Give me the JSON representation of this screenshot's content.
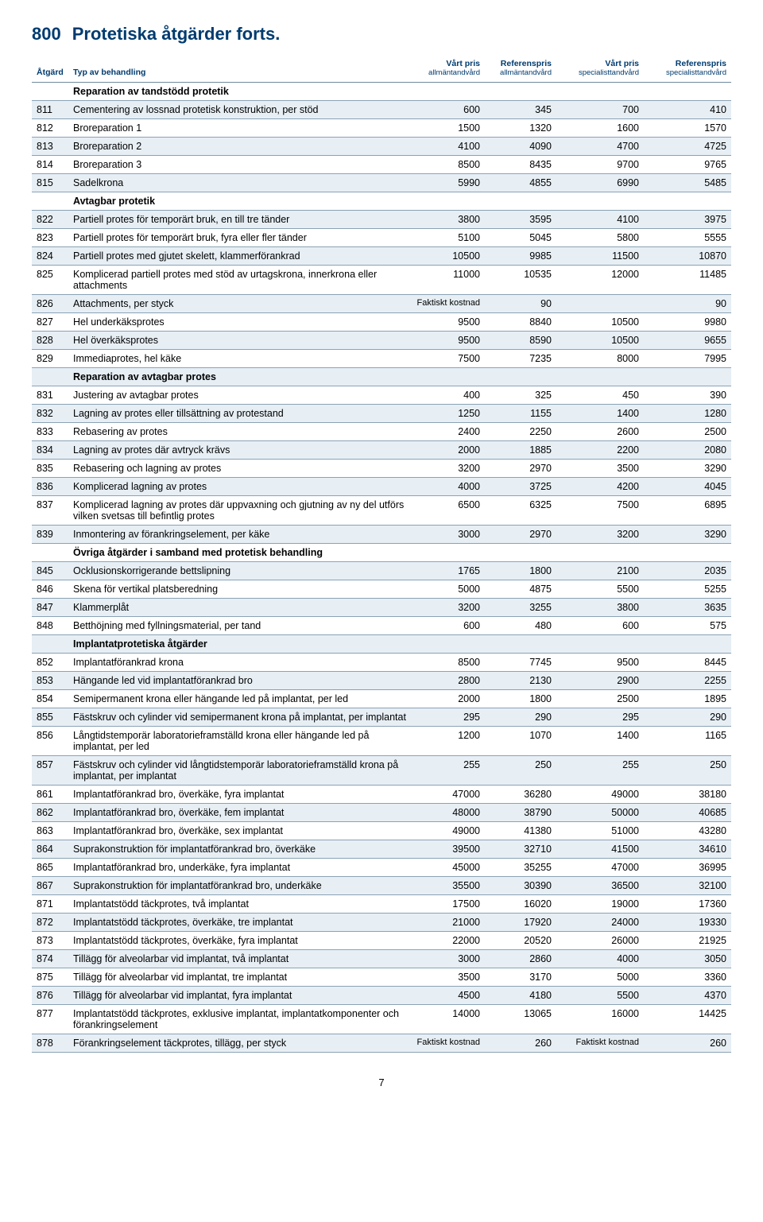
{
  "title_code": "800",
  "title_text": "Protetiska åtgärder forts.",
  "columns": {
    "atgard": "Åtgärd",
    "typ": "Typ av behandling",
    "c1_top": "Vårt pris",
    "c1_sub": "allmäntandvård",
    "c2_top": "Referenspris",
    "c2_sub": "allmäntandvård",
    "c3_top": "Vårt pris",
    "c3_sub": "specialisttandvård",
    "c4_top": "Referenspris",
    "c4_sub": "specialisttandvård"
  },
  "faktiskt_kostnad": "Faktiskt kostnad",
  "page_number": "7",
  "rows": [
    {
      "type": "section",
      "desc": "Reparation av tandstödd protetik"
    },
    {
      "code": "811",
      "desc": "Cementering av lossnad protetisk konstruktion, per stöd",
      "v": [
        "600",
        "345",
        "700",
        "410"
      ]
    },
    {
      "code": "812",
      "desc": "Broreparation 1",
      "v": [
        "1500",
        "1320",
        "1600",
        "1570"
      ]
    },
    {
      "code": "813",
      "desc": "Broreparation 2",
      "v": [
        "4100",
        "4090",
        "4700",
        "4725"
      ]
    },
    {
      "code": "814",
      "desc": "Broreparation 3",
      "v": [
        "8500",
        "8435",
        "9700",
        "9765"
      ]
    },
    {
      "code": "815",
      "desc": "Sadelkrona",
      "v": [
        "5990",
        "4855",
        "6990",
        "5485"
      ]
    },
    {
      "type": "section",
      "desc": "Avtagbar protetik"
    },
    {
      "code": "822",
      "desc": "Partiell protes för temporärt bruk, en till tre tänder",
      "v": [
        "3800",
        "3595",
        "4100",
        "3975"
      ]
    },
    {
      "code": "823",
      "desc": "Partiell protes för temporärt bruk, fyra eller fler tänder",
      "v": [
        "5100",
        "5045",
        "5800",
        "5555"
      ]
    },
    {
      "code": "824",
      "desc": "Partiell protes med gjutet skelett, klammerförankrad",
      "v": [
        "10500",
        "9985",
        "11500",
        "10870"
      ]
    },
    {
      "code": "825",
      "desc": "Komplicerad partiell protes med stöd av urtagskrona, innerkrona eller attachments",
      "v": [
        "11000",
        "10535",
        "12000",
        "11485"
      ]
    },
    {
      "code": "826",
      "desc": "Attachments, per styck",
      "v": [
        "__FK__",
        "90",
        "",
        "90"
      ]
    },
    {
      "code": "827",
      "desc": "Hel underkäksprotes",
      "v": [
        "9500",
        "8840",
        "10500",
        "9980"
      ]
    },
    {
      "code": "828",
      "desc": "Hel överkäksprotes",
      "v": [
        "9500",
        "8590",
        "10500",
        "9655"
      ]
    },
    {
      "code": "829",
      "desc": "Immediaprotes, hel käke",
      "v": [
        "7500",
        "7235",
        "8000",
        "7995"
      ]
    },
    {
      "type": "section",
      "desc": "Reparation av avtagbar protes"
    },
    {
      "code": "831",
      "desc": "Justering av avtagbar protes",
      "v": [
        "400",
        "325",
        "450",
        "390"
      ]
    },
    {
      "code": "832",
      "desc": "Lagning av protes eller tillsättning av protestand",
      "v": [
        "1250",
        "1155",
        "1400",
        "1280"
      ]
    },
    {
      "code": "833",
      "desc": "Rebasering av protes",
      "v": [
        "2400",
        "2250",
        "2600",
        "2500"
      ]
    },
    {
      "code": "834",
      "desc": "Lagning av protes där avtryck krävs",
      "v": [
        "2000",
        "1885",
        "2200",
        "2080"
      ]
    },
    {
      "code": "835",
      "desc": "Rebasering och lagning av protes",
      "v": [
        "3200",
        "2970",
        "3500",
        "3290"
      ]
    },
    {
      "code": "836",
      "desc": "Komplicerad lagning av protes",
      "v": [
        "4000",
        "3725",
        "4200",
        "4045"
      ]
    },
    {
      "code": "837",
      "desc": "Komplicerad lagning av protes där uppvaxning och gjutning av ny del utförs vilken svetsas till befintlig protes",
      "v": [
        "6500",
        "6325",
        "7500",
        "6895"
      ]
    },
    {
      "code": "839",
      "desc": "Inmontering av förankringselement, per käke",
      "v": [
        "3000",
        "2970",
        "3200",
        "3290"
      ]
    },
    {
      "type": "section",
      "desc": "Övriga åtgärder i samband med protetisk behandling"
    },
    {
      "code": "845",
      "desc": "Ocklusionskorrigerande bettslipning",
      "v": [
        "1765",
        "1800",
        "2100",
        "2035"
      ]
    },
    {
      "code": "846",
      "desc": "Skena för vertikal platsberedning",
      "v": [
        "5000",
        "4875",
        "5500",
        "5255"
      ]
    },
    {
      "code": "847",
      "desc": "Klammerplåt",
      "v": [
        "3200",
        "3255",
        "3800",
        "3635"
      ]
    },
    {
      "code": "848",
      "desc": "Betthöjning med fyllningsmaterial, per tand",
      "v": [
        "600",
        "480",
        "600",
        "575"
      ]
    },
    {
      "type": "section",
      "desc": "Implantatprotetiska åtgärder"
    },
    {
      "code": "852",
      "desc": "Implantatförankrad krona",
      "v": [
        "8500",
        "7745",
        "9500",
        "8445"
      ]
    },
    {
      "code": "853",
      "desc": "Hängande led vid implantatförankrad bro",
      "v": [
        "2800",
        "2130",
        "2900",
        "2255"
      ]
    },
    {
      "code": "854",
      "desc": "Semipermanent krona eller hängande led på implantat, per led",
      "v": [
        "2000",
        "1800",
        "2500",
        "1895"
      ]
    },
    {
      "code": "855",
      "desc": "Fästskruv och cylinder vid semipermanent krona på implantat, per implantat",
      "v": [
        "295",
        "290",
        "295",
        "290"
      ]
    },
    {
      "code": "856",
      "desc": "Långtidstemporär laboratorieframställd krona eller hängande led på implantat, per led",
      "v": [
        "1200",
        "1070",
        "1400",
        "1165"
      ]
    },
    {
      "code": "857",
      "desc": "Fästskruv och cylinder vid långtidstemporär laboratorieframställd krona på implantat, per implantat",
      "v": [
        "255",
        "250",
        "255",
        "250"
      ]
    },
    {
      "code": "861",
      "desc": "Implantatförankrad bro, överkäke, fyra implantat",
      "v": [
        "47000",
        "36280",
        "49000",
        "38180"
      ]
    },
    {
      "code": "862",
      "desc": "Implantatförankrad bro, överkäke, fem implantat",
      "v": [
        "48000",
        "38790",
        "50000",
        "40685"
      ]
    },
    {
      "code": "863",
      "desc": "Implantatförankrad bro, överkäke, sex implantat",
      "v": [
        "49000",
        "41380",
        "51000",
        "43280"
      ]
    },
    {
      "code": "864",
      "desc": "Suprakonstruktion för implantatförankrad bro, överkäke",
      "v": [
        "39500",
        "32710",
        "41500",
        "34610"
      ]
    },
    {
      "code": "865",
      "desc": "Implantatförankrad bro, underkäke, fyra implantat",
      "v": [
        "45000",
        "35255",
        "47000",
        "36995"
      ]
    },
    {
      "code": "867",
      "desc": "Suprakonstruktion för implantatförankrad bro, underkäke",
      "v": [
        "35500",
        "30390",
        "36500",
        "32100"
      ]
    },
    {
      "code": "871",
      "desc": "Implantatstödd täckprotes, två implantat",
      "v": [
        "17500",
        "16020",
        "19000",
        "17360"
      ]
    },
    {
      "code": "872",
      "desc": "Implantatstödd täckprotes, överkäke, tre implantat",
      "v": [
        "21000",
        "17920",
        "24000",
        "19330"
      ]
    },
    {
      "code": "873",
      "desc": "Implantatstödd täckprotes, överkäke, fyra implantat",
      "v": [
        "22000",
        "20520",
        "26000",
        "21925"
      ]
    },
    {
      "code": "874",
      "desc": "Tillägg för alveolarbar vid implantat, två implantat",
      "v": [
        "3000",
        "2860",
        "4000",
        "3050"
      ]
    },
    {
      "code": "875",
      "desc": "Tillägg för alveolarbar vid implantat, tre implantat",
      "v": [
        "3500",
        "3170",
        "5000",
        "3360"
      ]
    },
    {
      "code": "876",
      "desc": "Tillägg för alveolarbar vid implantat, fyra implantat",
      "v": [
        "4500",
        "4180",
        "5500",
        "4370"
      ]
    },
    {
      "code": "877",
      "desc": "Implantatstödd täckprotes, exklusive implantat, implantatkomponenter och förankringselement",
      "v": [
        "14000",
        "13065",
        "16000",
        "14425"
      ]
    },
    {
      "code": "878",
      "desc": "Förankringselement täckprotes, tillägg, per styck",
      "v": [
        "__FK__",
        "260",
        "__FK__",
        "260"
      ]
    }
  ]
}
